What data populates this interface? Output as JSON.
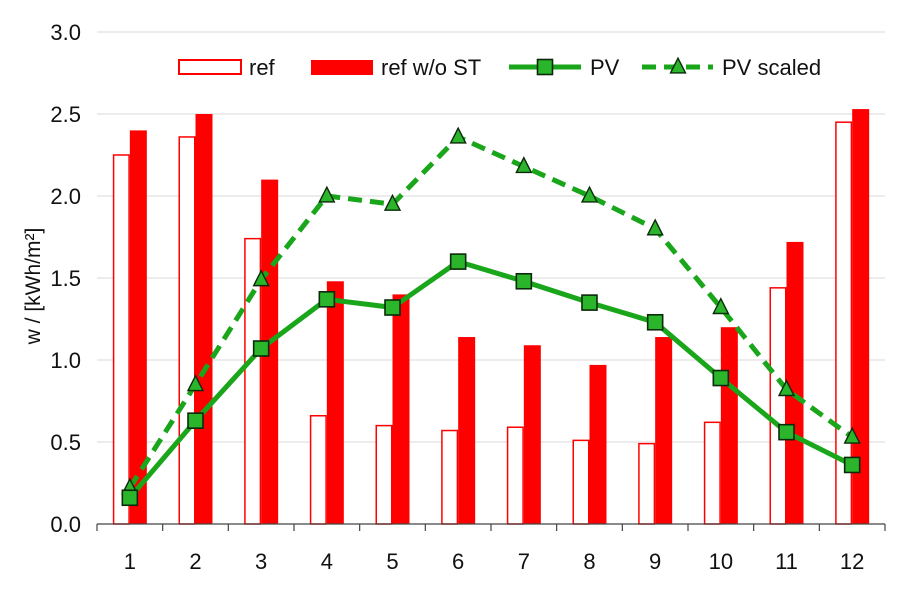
{
  "chart_data": {
    "type": "bar",
    "title": "",
    "xlabel": "",
    "ylabel": "w / [kWh/m²]",
    "ylim": [
      0,
      3.0
    ],
    "yticks": [
      "0.0",
      "0.5",
      "1.0",
      "1.5",
      "2.0",
      "2.5",
      "3.0"
    ],
    "grid": "horizontal",
    "legend_position": "top",
    "categories": [
      "1",
      "2",
      "3",
      "4",
      "5",
      "6",
      "7",
      "8",
      "9",
      "10",
      "11",
      "12"
    ],
    "series": [
      {
        "name": "ref",
        "kind": "bar",
        "style": "outline",
        "values": [
          2.25,
          2.36,
          1.74,
          0.66,
          0.6,
          0.57,
          0.59,
          0.51,
          0.49,
          0.62,
          1.44,
          2.45
        ]
      },
      {
        "name": "ref w/o ST",
        "kind": "bar",
        "style": "filled",
        "values": [
          2.4,
          2.5,
          2.1,
          1.48,
          1.4,
          1.14,
          1.09,
          0.97,
          1.14,
          1.2,
          1.72,
          2.53
        ]
      },
      {
        "name": "PV",
        "kind": "line",
        "style": "solid",
        "marker": "square",
        "values": [
          0.16,
          0.63,
          1.07,
          1.37,
          1.32,
          1.6,
          1.48,
          1.35,
          1.23,
          0.89,
          0.56,
          0.36
        ]
      },
      {
        "name": "PV scaled",
        "kind": "line",
        "style": "dashed",
        "marker": "triangle",
        "values": [
          0.22,
          0.85,
          1.49,
          2.0,
          1.95,
          2.36,
          2.18,
          2.0,
          1.8,
          1.32,
          0.82,
          0.53
        ]
      }
    ],
    "colors": {
      "bar_red": "#ff0000",
      "line_green": "#1aa61a",
      "marker_fill": "#2bb52b",
      "marker_edge": "#0a2a0a",
      "grid": "#d9d9d9",
      "axis": "#444444"
    }
  }
}
